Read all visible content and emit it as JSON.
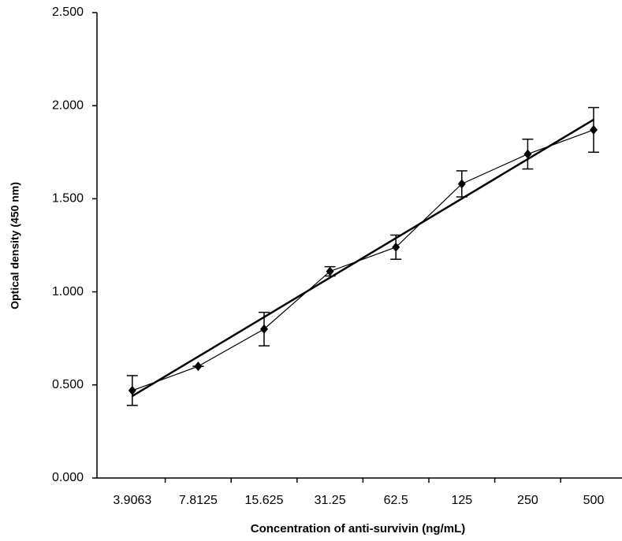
{
  "chart_data": {
    "type": "line",
    "x_label": "Concentration of anti-survivin (ng/mL)",
    "y_label": "Optical density (450 nm)",
    "categories": [
      "3.9063",
      "7.8125",
      "15.625",
      "31.25",
      "62.5",
      "125",
      "250",
      "500"
    ],
    "values": [
      0.47,
      0.6,
      0.8,
      1.11,
      1.24,
      1.58,
      1.74,
      1.87
    ],
    "errors": [
      0.08,
      0,
      0.09,
      0.025,
      0.065,
      0.07,
      0.08,
      0.12
    ],
    "trend_line": [
      0.44,
      1.925
    ],
    "color": "#000000",
    "ylim": [
      0,
      2.5
    ],
    "yticks": [
      {
        "value": 0,
        "label": "0.000"
      },
      {
        "value": 0.5,
        "label": "0.500"
      },
      {
        "value": 1,
        "label": "1.000"
      },
      {
        "value": 1.5,
        "label": "1.500"
      },
      {
        "value": 2,
        "label": "2.000"
      },
      {
        "value": 2.5,
        "label": "2.500"
      }
    ]
  }
}
